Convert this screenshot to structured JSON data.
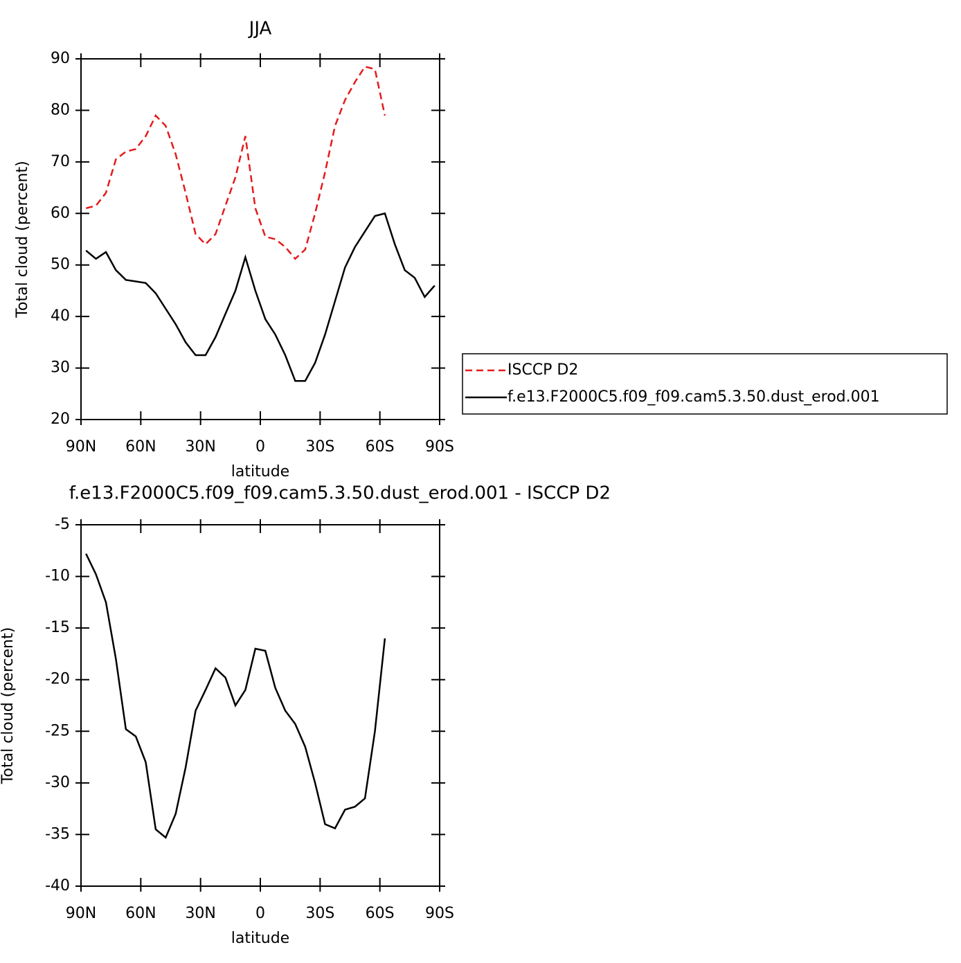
{
  "chart_data": [
    {
      "type": "line",
      "title": "JJA",
      "xlabel": "latitude",
      "ylabel": "Total cloud (percent)",
      "x": [
        87.5,
        82.5,
        77.5,
        72.5,
        67.5,
        62.5,
        57.5,
        52.5,
        47.5,
        42.5,
        37.5,
        32.5,
        27.5,
        22.5,
        17.5,
        12.5,
        7.5,
        2.5,
        -2.5,
        -7.5,
        -12.5,
        -17.5,
        -22.5,
        -27.5,
        -32.5,
        -37.5,
        -42.5,
        -47.5,
        -52.5,
        -57.5,
        -62.5,
        -67.5,
        -72.5,
        -77.5,
        -82.5,
        -87.5
      ],
      "series": [
        {
          "name": "ISCCP D2",
          "color": "#e41a1c",
          "dash": true,
          "values": [
            61,
            61.5,
            64,
            70.5,
            72,
            72.5,
            75,
            79,
            77,
            71.5,
            64,
            56,
            54,
            56,
            61.5,
            67,
            75,
            61,
            55.5,
            55,
            53.5,
            51.2,
            53,
            60,
            68,
            77,
            82,
            85.5,
            88.5,
            88,
            79,
            null,
            null,
            null,
            null,
            null
          ]
        },
        {
          "name": "f.e13.F2000C5.f09_f09.cam5.3.50.dust_erod.001",
          "color": "#000000",
          "dash": false,
          "values": [
            52.8,
            51.2,
            52.5,
            49,
            47.1,
            46.8,
            46.5,
            44.5,
            41.5,
            38.5,
            35,
            32.5,
            32.5,
            36,
            40.5,
            45,
            51.5,
            45,
            39.5,
            36.5,
            32.5,
            27.5,
            27.5,
            31,
            36.5,
            43,
            49.5,
            53.5,
            56.5,
            59.5,
            60,
            54,
            49,
            47.5,
            43.8,
            46
          ]
        }
      ],
      "xlim": [
        90,
        -90
      ],
      "xticks": [
        {
          "value": 90,
          "label": "90N"
        },
        {
          "value": 60,
          "label": "60N"
        },
        {
          "value": 30,
          "label": "30N"
        },
        0,
        {
          "value": -30,
          "label": "30S"
        },
        {
          "value": -60,
          "label": "60S"
        },
        {
          "value": -90,
          "label": "90S"
        }
      ],
      "ylim": [
        20,
        90
      ],
      "yticks": [
        20,
        30,
        40,
        50,
        60,
        70,
        80,
        90
      ],
      "legend": "right"
    },
    {
      "type": "line",
      "title": "f.e13.F2000C5.f09_f09.cam5.3.50.dust_erod.001 - ISCCP D2",
      "xlabel": "latitude",
      "ylabel": "Total cloud (percent)",
      "x": [
        87.5,
        82.5,
        77.5,
        72.5,
        67.5,
        62.5,
        57.5,
        52.5,
        47.5,
        42.5,
        37.5,
        32.5,
        27.5,
        22.5,
        17.5,
        12.5,
        7.5,
        2.5,
        -2.5,
        -7.5,
        -12.5,
        -17.5,
        -22.5,
        -27.5,
        -32.5,
        -37.5,
        -42.5,
        -47.5,
        -52.5,
        -57.5,
        -62.5
      ],
      "series": [
        {
          "color": "#000000",
          "dash": false,
          "values": [
            -7.8,
            -9.8,
            -12.5,
            -18,
            -24.8,
            -25.5,
            -28,
            -34.5,
            -35.3,
            -33,
            -28.5,
            -23,
            -21,
            -18.9,
            -19.8,
            -22.5,
            -21,
            -17,
            -17.2,
            -20.8,
            -23,
            -24.3,
            -26.5,
            -30,
            -34,
            -34.4,
            -32.6,
            -32.3,
            -31.5,
            -25,
            -16
          ]
        }
      ],
      "xlim": [
        90,
        -90
      ],
      "xticks": [
        {
          "value": 90,
          "label": "90N"
        },
        {
          "value": 60,
          "label": "60N"
        },
        {
          "value": 30,
          "label": "30N"
        },
        0,
        {
          "value": -30,
          "label": "30S"
        },
        {
          "value": -60,
          "label": "60S"
        },
        {
          "value": -90,
          "label": "90S"
        }
      ],
      "ylim": [
        -40,
        -5
      ],
      "yticks": [
        -40,
        -35,
        -30,
        -25,
        -20,
        -15,
        -10,
        -5
      ]
    }
  ]
}
